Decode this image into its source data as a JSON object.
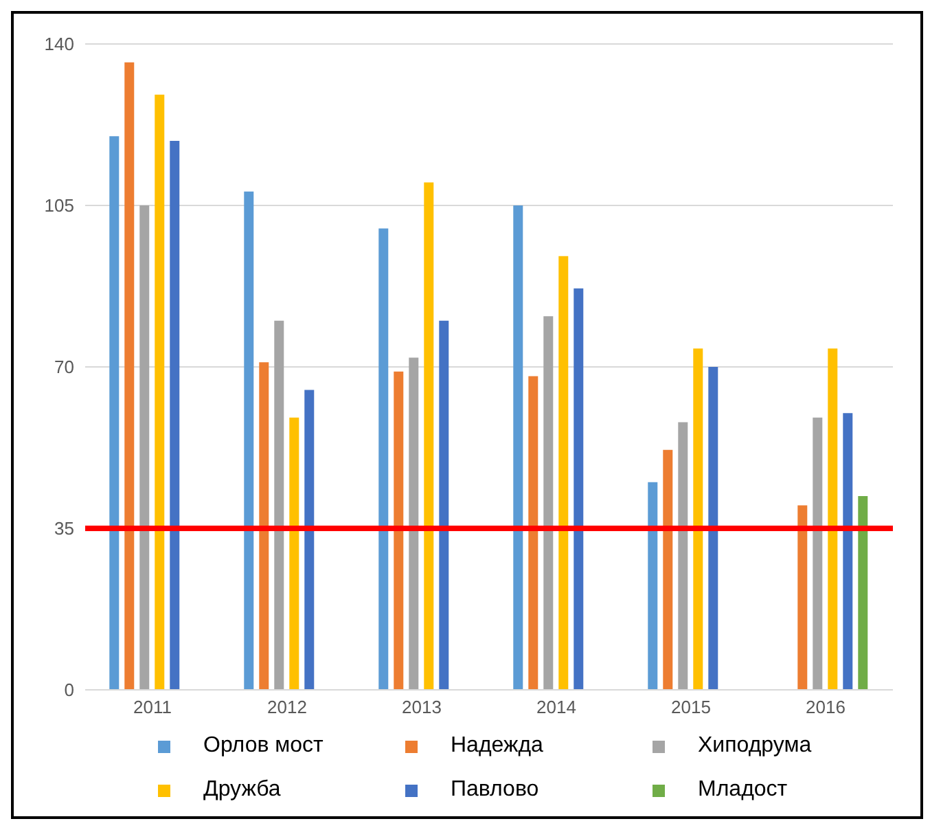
{
  "chart_data": {
    "type": "bar",
    "categories": [
      "2011",
      "2012",
      "2013",
      "2014",
      "2015",
      "2016"
    ],
    "series": [
      {
        "name": "Орлов мост",
        "color": "#5b9bd5",
        "values": [
          120,
          108,
          100,
          105,
          45,
          null
        ]
      },
      {
        "name": "Надежда",
        "color": "#ed7d31",
        "values": [
          136,
          71,
          69,
          68,
          52,
          40
        ]
      },
      {
        "name": "Хиподрума",
        "color": "#a5a5a5",
        "values": [
          105,
          80,
          72,
          81,
          58,
          59
        ]
      },
      {
        "name": "Дружба",
        "color": "#ffc000",
        "values": [
          129,
          59,
          110,
          94,
          74,
          74
        ]
      },
      {
        "name": "Павлово",
        "color": "#4472c4",
        "values": [
          119,
          65,
          80,
          87,
          70,
          60
        ]
      },
      {
        "name": "Младост",
        "color": "#70ad47",
        "values": [
          null,
          null,
          null,
          null,
          null,
          42
        ]
      }
    ],
    "ylim": [
      0,
      140
    ],
    "yticks": [
      0,
      35,
      70,
      105,
      140
    ],
    "grid": "y",
    "legend": "bottom",
    "ref_lines": [
      {
        "axis": "y",
        "value": 35,
        "color": "#ff0000"
      }
    ]
  }
}
